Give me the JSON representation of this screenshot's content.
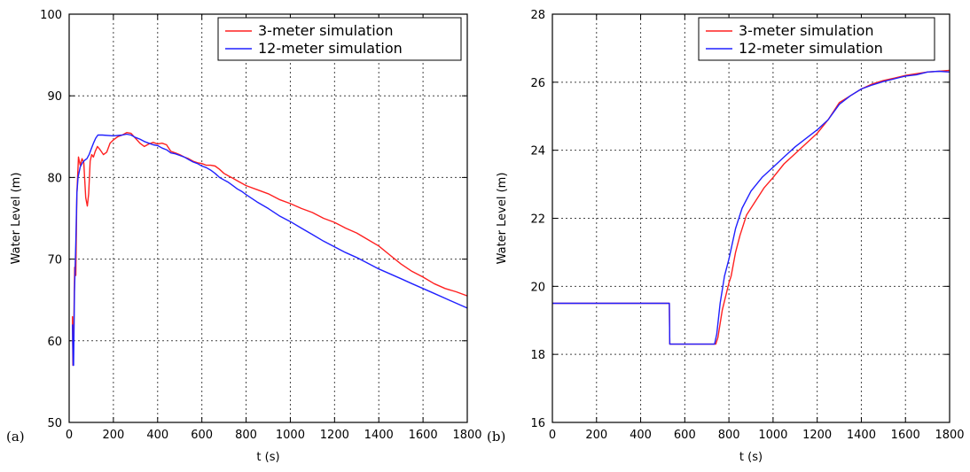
{
  "chart_data": [
    {
      "type": "line",
      "panel_label": "(a)",
      "xlabel": "t (s)",
      "ylabel": "Water Level (m)",
      "xlim": [
        0,
        1800
      ],
      "ylim": [
        50,
        100
      ],
      "xticks": [
        0,
        200,
        400,
        600,
        800,
        1000,
        1200,
        1400,
        1600,
        1800
      ],
      "yticks": [
        50,
        60,
        70,
        80,
        90,
        100
      ],
      "grid": true,
      "legend_position": "top-right",
      "series": [
        {
          "name": "3-meter simulation",
          "color": "#ff2020",
          "points": [
            [
              15,
              63
            ],
            [
              17,
              57
            ],
            [
              20,
              60
            ],
            [
              25,
              69
            ],
            [
              30,
              68
            ],
            [
              35,
              78
            ],
            [
              42,
              82.5
            ],
            [
              50,
              81.5
            ],
            [
              58,
              82.3
            ],
            [
              66,
              81.8
            ],
            [
              75,
              77.5
            ],
            [
              82,
              76.5
            ],
            [
              88,
              78
            ],
            [
              95,
              82
            ],
            [
              102,
              82.8
            ],
            [
              110,
              82.5
            ],
            [
              118,
              83.2
            ],
            [
              128,
              83.8
            ],
            [
              140,
              83.4
            ],
            [
              155,
              82.8
            ],
            [
              170,
              83.1
            ],
            [
              185,
              84.2
            ],
            [
              200,
              84.6
            ],
            [
              220,
              85
            ],
            [
              240,
              85.2
            ],
            [
              260,
              85.5
            ],
            [
              280,
              85.4
            ],
            [
              300,
              84.8
            ],
            [
              320,
              84.2
            ],
            [
              340,
              83.8
            ],
            [
              360,
              84.1
            ],
            [
              380,
              84.3
            ],
            [
              400,
              84.1
            ],
            [
              420,
              84.2
            ],
            [
              440,
              84
            ],
            [
              460,
              83.2
            ],
            [
              480,
              83
            ],
            [
              500,
              82.8
            ],
            [
              520,
              82.5
            ],
            [
              540,
              82.3
            ],
            [
              560,
              82
            ],
            [
              580,
              81.8
            ],
            [
              600,
              81.7
            ],
            [
              620,
              81.5
            ],
            [
              640,
              81.5
            ],
            [
              660,
              81.4
            ],
            [
              680,
              81
            ],
            [
              700,
              80.5
            ],
            [
              720,
              80.2
            ],
            [
              740,
              79.9
            ],
            [
              760,
              79.6
            ],
            [
              780,
              79.3
            ],
            [
              800,
              79
            ],
            [
              850,
              78.5
            ],
            [
              900,
              78
            ],
            [
              950,
              77.3
            ],
            [
              1000,
              76.8
            ],
            [
              1050,
              76.2
            ],
            [
              1100,
              75.7
            ],
            [
              1150,
              75
            ],
            [
              1200,
              74.5
            ],
            [
              1250,
              73.8
            ],
            [
              1300,
              73.2
            ],
            [
              1350,
              72.4
            ],
            [
              1400,
              71.6
            ],
            [
              1450,
              70.5
            ],
            [
              1500,
              69.4
            ],
            [
              1550,
              68.5
            ],
            [
              1600,
              67.8
            ],
            [
              1650,
              67
            ],
            [
              1700,
              66.4
            ],
            [
              1750,
              66
            ],
            [
              1800,
              65.5
            ]
          ]
        },
        {
          "name": "12-meter simulation",
          "color": "#2020ff",
          "points": [
            [
              15,
              62
            ],
            [
              18,
              57
            ],
            [
              20,
              57
            ],
            [
              24,
              66
            ],
            [
              30,
              72
            ],
            [
              35,
              78
            ],
            [
              40,
              80
            ],
            [
              50,
              81.3
            ],
            [
              60,
              81.8
            ],
            [
              70,
              82.1
            ],
            [
              80,
              82.3
            ],
            [
              90,
              82.8
            ],
            [
              100,
              83.5
            ],
            [
              110,
              84.2
            ],
            [
              120,
              84.8
            ],
            [
              130,
              85.2
            ],
            [
              150,
              85.2
            ],
            [
              200,
              85.1
            ],
            [
              240,
              85.2
            ],
            [
              260,
              85.3
            ],
            [
              280,
              85.2
            ],
            [
              300,
              84.9
            ],
            [
              320,
              84.7
            ],
            [
              340,
              84.4
            ],
            [
              360,
              84.2
            ],
            [
              380,
              84
            ],
            [
              400,
              83.9
            ],
            [
              420,
              83.6
            ],
            [
              440,
              83.4
            ],
            [
              460,
              83
            ],
            [
              480,
              82.9
            ],
            [
              500,
              82.7
            ],
            [
              520,
              82.5
            ],
            [
              540,
              82.2
            ],
            [
              560,
              81.9
            ],
            [
              580,
              81.7
            ],
            [
              600,
              81.4
            ],
            [
              620,
              81.2
            ],
            [
              640,
              80.9
            ],
            [
              660,
              80.5
            ],
            [
              680,
              80
            ],
            [
              700,
              79.7
            ],
            [
              720,
              79.4
            ],
            [
              740,
              79
            ],
            [
              760,
              78.6
            ],
            [
              780,
              78.3
            ],
            [
              800,
              77.9
            ],
            [
              850,
              77
            ],
            [
              900,
              76.2
            ],
            [
              950,
              75.3
            ],
            [
              1000,
              74.6
            ],
            [
              1050,
              73.8
            ],
            [
              1100,
              73
            ],
            [
              1150,
              72.2
            ],
            [
              1200,
              71.5
            ],
            [
              1250,
              70.8
            ],
            [
              1300,
              70.2
            ],
            [
              1350,
              69.5
            ],
            [
              1400,
              68.8
            ],
            [
              1450,
              68.2
            ],
            [
              1500,
              67.6
            ],
            [
              1550,
              67
            ],
            [
              1600,
              66.4
            ],
            [
              1650,
              65.8
            ],
            [
              1700,
              65.2
            ],
            [
              1750,
              64.6
            ],
            [
              1800,
              64
            ]
          ]
        }
      ]
    },
    {
      "type": "line",
      "panel_label": "(b)",
      "xlabel": "t (s)",
      "ylabel": "Water Level (m)",
      "xlim": [
        0,
        1800
      ],
      "ylim": [
        16,
        28
      ],
      "xticks": [
        0,
        200,
        400,
        600,
        800,
        1000,
        1200,
        1400,
        1600,
        1800
      ],
      "yticks": [
        16,
        18,
        20,
        22,
        24,
        26,
        28
      ],
      "grid": true,
      "legend_position": "top-right",
      "series": [
        {
          "name": "3-meter simulation",
          "color": "#ff2020",
          "points": [
            [
              0,
              19.5
            ],
            [
              530,
              19.5
            ],
            [
              532,
              18.3
            ],
            [
              740,
              18.3
            ],
            [
              750,
              18.5
            ],
            [
              770,
              19.3
            ],
            [
              800,
              20.1
            ],
            [
              810,
              20.3
            ],
            [
              830,
              21
            ],
            [
              850,
              21.5
            ],
            [
              880,
              22.1
            ],
            [
              920,
              22.5
            ],
            [
              960,
              22.9
            ],
            [
              1000,
              23.2
            ],
            [
              1050,
              23.6
            ],
            [
              1100,
              23.9
            ],
            [
              1150,
              24.2
            ],
            [
              1200,
              24.5
            ],
            [
              1250,
              24.9
            ],
            [
              1300,
              25.4
            ],
            [
              1350,
              25.6
            ],
            [
              1400,
              25.8
            ],
            [
              1450,
              25.95
            ],
            [
              1500,
              26.05
            ],
            [
              1550,
              26.12
            ],
            [
              1600,
              26.2
            ],
            [
              1650,
              26.25
            ],
            [
              1700,
              26.3
            ],
            [
              1750,
              26.32
            ],
            [
              1800,
              26.35
            ]
          ]
        },
        {
          "name": "12-meter simulation",
          "color": "#2020ff",
          "points": [
            [
              0,
              19.5
            ],
            [
              530,
              19.5
            ],
            [
              532,
              18.3
            ],
            [
              735,
              18.3
            ],
            [
              745,
              18.6
            ],
            [
              760,
              19.5
            ],
            [
              780,
              20.3
            ],
            [
              800,
              20.8
            ],
            [
              830,
              21.7
            ],
            [
              860,
              22.3
            ],
            [
              900,
              22.8
            ],
            [
              950,
              23.2
            ],
            [
              1000,
              23.5
            ],
            [
              1050,
              23.8
            ],
            [
              1100,
              24.1
            ],
            [
              1150,
              24.35
            ],
            [
              1200,
              24.6
            ],
            [
              1250,
              24.9
            ],
            [
              1300,
              25.35
            ],
            [
              1350,
              25.6
            ],
            [
              1400,
              25.8
            ],
            [
              1450,
              25.92
            ],
            [
              1500,
              26.02
            ],
            [
              1550,
              26.1
            ],
            [
              1600,
              26.18
            ],
            [
              1650,
              26.22
            ],
            [
              1700,
              26.3
            ],
            [
              1750,
              26.32
            ],
            [
              1800,
              26.3
            ]
          ]
        }
      ]
    }
  ]
}
